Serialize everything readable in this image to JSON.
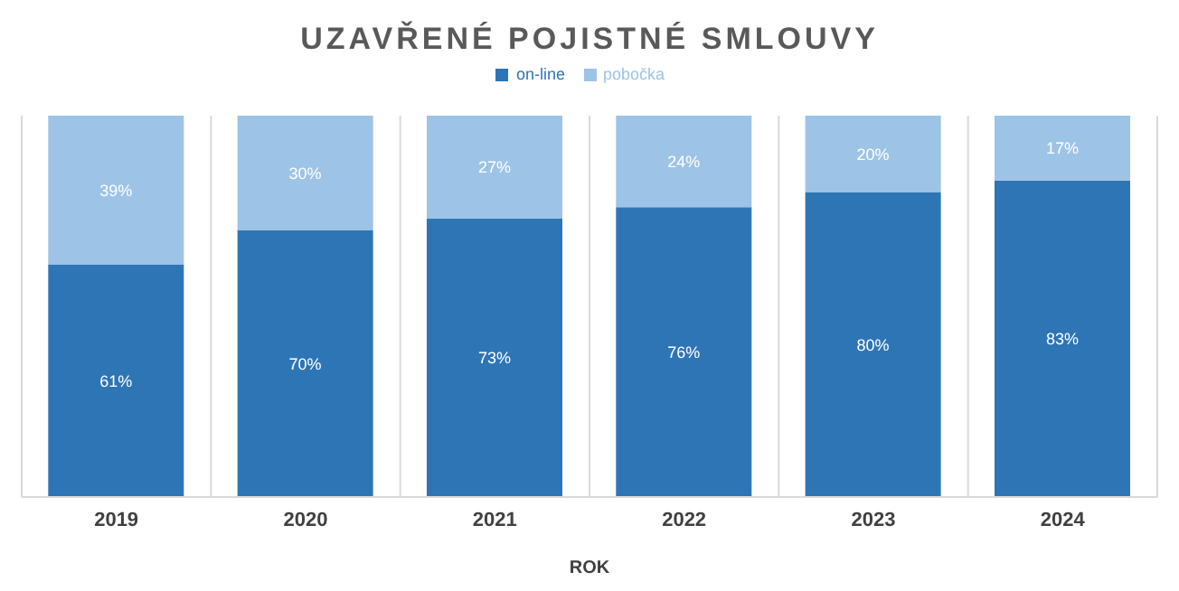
{
  "chart_data": {
    "type": "bar",
    "title": "UZAVŘENÉ POJISTNÉ SMLOUVY",
    "xlabel": "ROK",
    "categories": [
      "2019",
      "2020",
      "2021",
      "2022",
      "2023",
      "2024"
    ],
    "stacked": true,
    "grid": "x",
    "legend": "top",
    "tick_labels": "x",
    "series": [
      {
        "name": "on-line",
        "color": "#2e75b6",
        "values": [
          61,
          70,
          73,
          76,
          80,
          83
        ],
        "value_labels": [
          "61%",
          "70%",
          "73%",
          "76%",
          "80%",
          "83%"
        ]
      },
      {
        "name": "pobočka",
        "color": "#9dc3e6",
        "values": [
          39,
          30,
          27,
          24,
          20,
          17
        ],
        "value_labels": [
          "39%",
          "30%",
          "27%",
          "24%",
          "20%",
          "17%"
        ]
      }
    ]
  }
}
